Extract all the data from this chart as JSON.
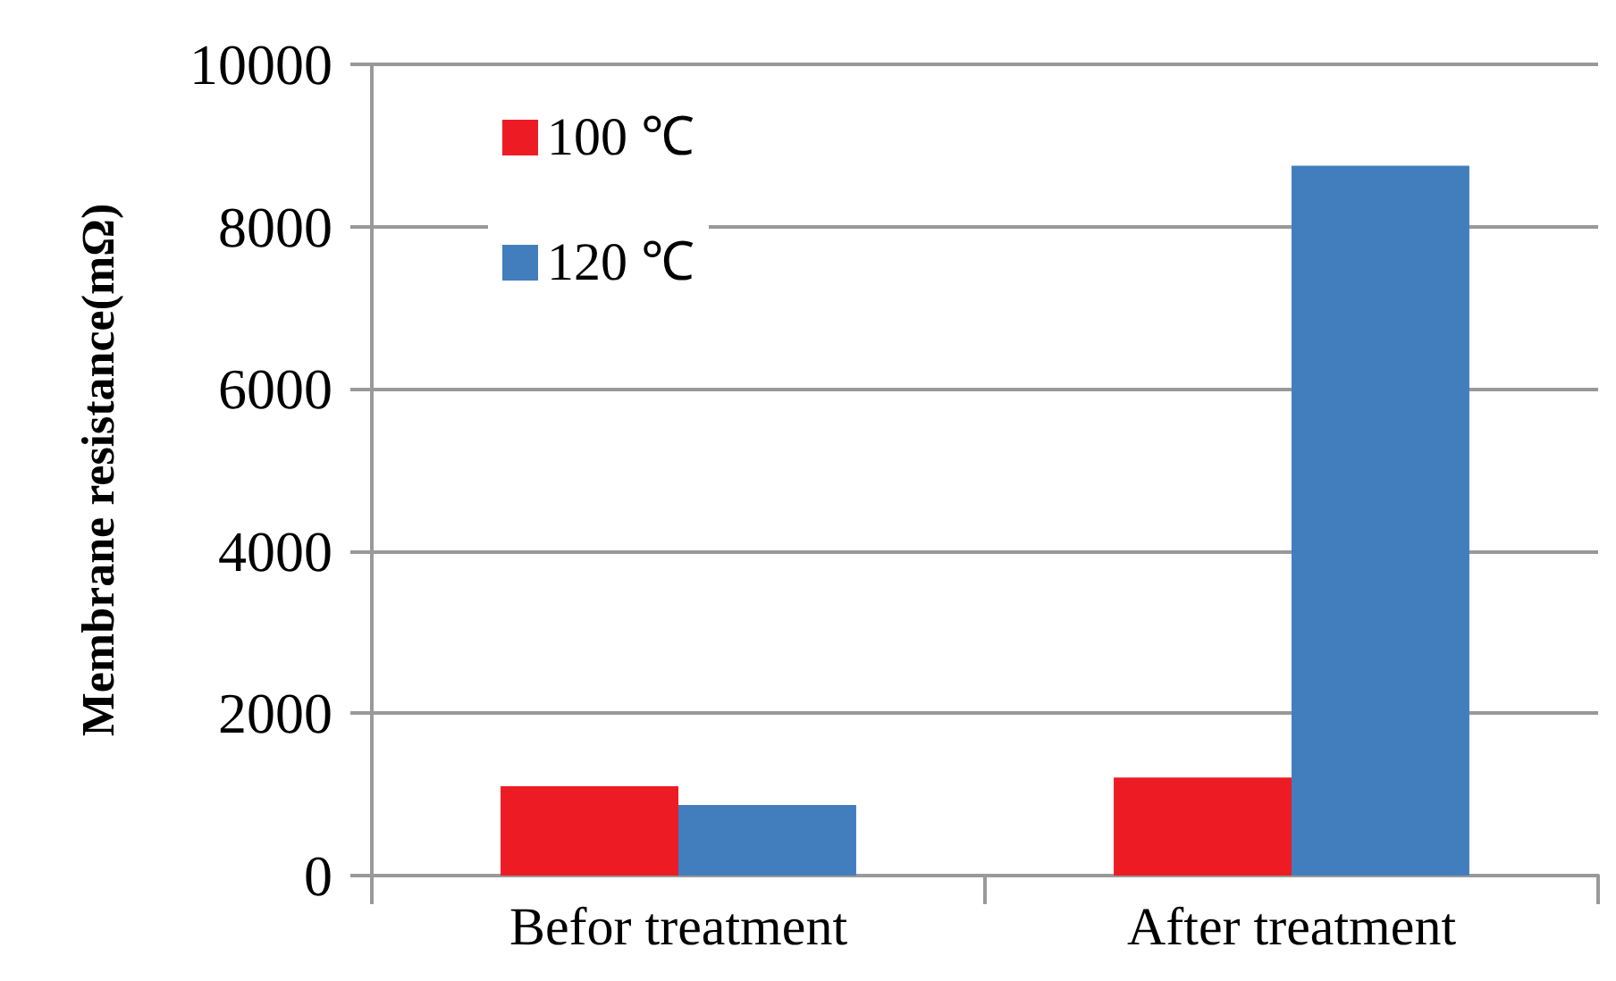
{
  "chart_data": {
    "type": "bar",
    "ylabel": "Membrane resistance(mΩ)",
    "categories": [
      "Befor treatment",
      "After treatment"
    ],
    "series": [
      {
        "name": "100 ℃",
        "color": "#ed1c24",
        "values": [
          1100,
          1210
        ]
      },
      {
        "name": "120 ℃",
        "color": "#427ebd",
        "values": [
          870,
          8750
        ]
      }
    ],
    "ylim": [
      0,
      10000
    ],
    "yticks": [
      0,
      2000,
      4000,
      6000,
      8000,
      10000
    ],
    "grid": "y",
    "legend": "top left"
  }
}
